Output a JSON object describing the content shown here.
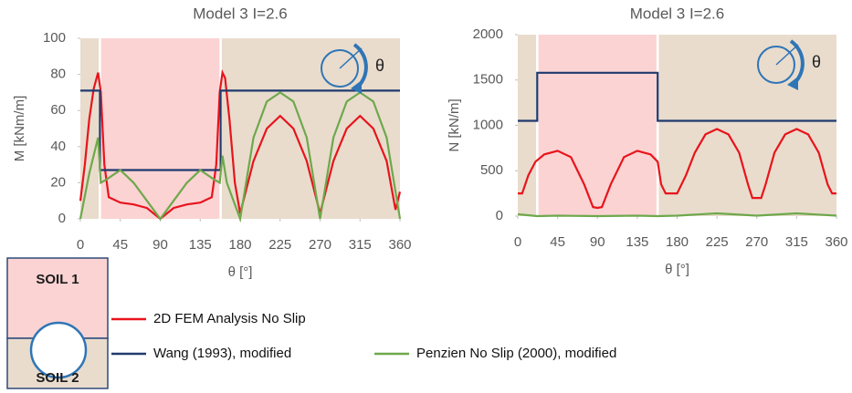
{
  "chart_data": [
    {
      "type": "line",
      "title": "Model 3 I=2.6",
      "x_label": "θ [°]",
      "y_label": "M [kNm/m]",
      "icon_label": "θ",
      "xlim": [
        0,
        360
      ],
      "xticks": [
        0,
        45,
        90,
        135,
        180,
        225,
        270,
        315,
        360
      ],
      "ylim": [
        0,
        100
      ],
      "yticks": [
        0,
        20,
        40,
        60,
        80,
        100
      ],
      "shaded_xrange": [
        22,
        158
      ],
      "background": "#e9dccd",
      "shade_color": "#fbd3d3",
      "series": [
        {
          "name": "2D FEM Analysis No Slip",
          "color": "#e8141c",
          "x": [
            0,
            5,
            10,
            15,
            20,
            23,
            27,
            32,
            45,
            60,
            75,
            85,
            90,
            95,
            105,
            120,
            135,
            148,
            153,
            157,
            160,
            163,
            168,
            174,
            180,
            195,
            210,
            225,
            240,
            255,
            270,
            285,
            300,
            315,
            330,
            345,
            355,
            360
          ],
          "values": [
            10,
            30,
            55,
            72,
            81,
            70,
            30,
            12,
            9,
            8,
            6,
            2,
            0,
            2,
            6,
            8,
            9,
            12,
            30,
            70,
            81,
            78,
            55,
            20,
            3,
            32,
            50,
            57,
            50,
            32,
            3,
            32,
            50,
            57,
            50,
            32,
            5,
            15
          ]
        },
        {
          "name": "Wang (1993), modified",
          "color": "#1f3a6e",
          "x": [
            0,
            22,
            22,
            158,
            158,
            360
          ],
          "values": [
            71,
            71,
            27,
            27,
            71,
            71
          ]
        },
        {
          "name": "Penzien No Slip (2000), modified",
          "color": "#6ea84c",
          "x": [
            0,
            10,
            20,
            23,
            30,
            45,
            60,
            75,
            90,
            105,
            120,
            135,
            150,
            157,
            160,
            165,
            180,
            195,
            210,
            225,
            240,
            255,
            270,
            285,
            300,
            315,
            330,
            345,
            360
          ],
          "values": [
            0,
            25,
            45,
            20,
            22,
            27,
            20,
            10,
            0,
            10,
            20,
            27,
            22,
            20,
            35,
            20,
            0,
            45,
            65,
            70,
            65,
            45,
            0,
            45,
            65,
            70,
            65,
            45,
            0
          ]
        }
      ]
    },
    {
      "type": "line",
      "title": "Model 3 I=2.6",
      "x_label": "θ [°]",
      "y_label": "N [kN/m]",
      "icon_label": "θ",
      "xlim": [
        0,
        360
      ],
      "xticks": [
        0,
        45,
        90,
        135,
        180,
        225,
        270,
        315,
        360
      ],
      "ylim": [
        0,
        2000
      ],
      "yticks": [
        0,
        500,
        1000,
        1500,
        2000
      ],
      "shaded_xrange": [
        22,
        158
      ],
      "background": "#e9dccd",
      "shade_color": "#fbd3d3",
      "series": [
        {
          "name": "2D FEM Analysis No Slip",
          "color": "#e8141c",
          "x": [
            0,
            5,
            12,
            20,
            30,
            45,
            60,
            75,
            85,
            90,
            95,
            105,
            120,
            135,
            150,
            158,
            162,
            167,
            180,
            190,
            200,
            212,
            225,
            238,
            250,
            260,
            265,
            275,
            280,
            290,
            302,
            315,
            328,
            340,
            350,
            355,
            360
          ],
          "values": [
            250,
            250,
            450,
            600,
            680,
            720,
            650,
            350,
            100,
            90,
            100,
            350,
            650,
            720,
            680,
            600,
            350,
            250,
            250,
            450,
            700,
            900,
            960,
            900,
            700,
            350,
            200,
            200,
            350,
            700,
            900,
            960,
            900,
            700,
            350,
            250,
            250
          ]
        },
        {
          "name": "Wang (1993), modified",
          "color": "#1f3a6e",
          "x": [
            0,
            22,
            22,
            158,
            158,
            360
          ],
          "values": [
            1050,
            1050,
            1580,
            1580,
            1050,
            1050
          ]
        },
        {
          "name": "Penzien No Slip (2000), modified",
          "color": "#6ea84c",
          "x": [
            0,
            22,
            45,
            90,
            135,
            158,
            180,
            225,
            270,
            315,
            360
          ],
          "values": [
            20,
            0,
            5,
            0,
            5,
            0,
            5,
            30,
            5,
            30,
            5
          ]
        }
      ]
    }
  ],
  "soil_diagram": {
    "top_label": "SOIL 1",
    "bottom_label": "SOIL 2"
  }
}
